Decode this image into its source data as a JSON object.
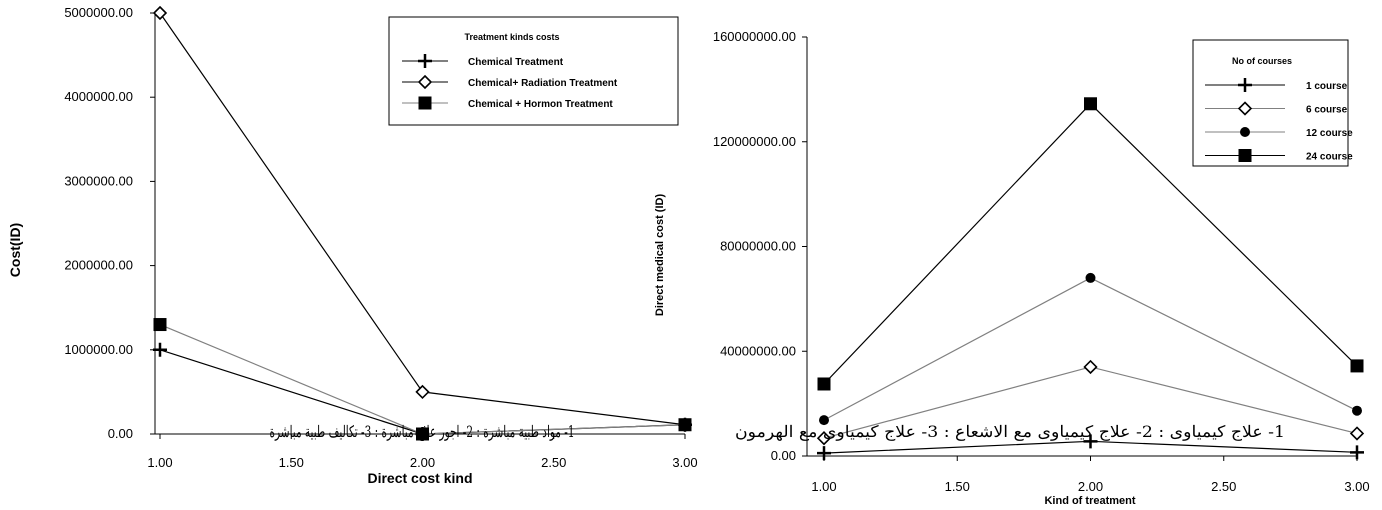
{
  "chart_data": [
    {
      "type": "line",
      "ylabel": "Cost(ID)",
      "xlabel": "Direct cost kind",
      "xlim": [
        1.0,
        3.0
      ],
      "ylim": [
        0,
        5000000
      ],
      "x_ticks": [
        "1.00",
        "1.50",
        "2.00",
        "2.50",
        "3.00"
      ],
      "y_ticks": [
        "0.00",
        "1000000.00",
        "2000000.00",
        "3000000.00",
        "4000000.00",
        "5000000.00"
      ],
      "legend": {
        "title": "Treatment kinds costs",
        "position": "top-right"
      },
      "annotation": "1- مواد طبية مباشرة : 2- اجور علاج مباشرة : 3- تكاليف طبية مباشرة",
      "grid": false,
      "series": [
        {
          "name": "Chemical Treatment",
          "marker": "plus",
          "color": "#000000",
          "x": [
            1,
            2,
            3
          ],
          "y": [
            1000000,
            0,
            110000
          ]
        },
        {
          "name": "Chemical+ Radiation Treatment",
          "marker": "diamond",
          "color": "#000000",
          "x": [
            1,
            2,
            3
          ],
          "y": [
            5000000,
            500000,
            110000
          ]
        },
        {
          "name": "Chemical + Hormon Treatment",
          "marker": "square",
          "color": "#808080",
          "x": [
            1,
            2,
            3
          ],
          "y": [
            1300000,
            0,
            110000
          ]
        }
      ]
    },
    {
      "type": "line",
      "ylabel": "Direct medical cost (ID)",
      "xlabel": "Kind of treatment",
      "xlim": [
        1.0,
        3.0
      ],
      "ylim": [
        0,
        160000000
      ],
      "x_ticks": [
        "1.00",
        "1.50",
        "2.00",
        "2.50",
        "3.00"
      ],
      "y_ticks": [
        "0.00",
        "40000000.00",
        "80000000.00",
        "120000000.00",
        "160000000.00"
      ],
      "legend": {
        "title": "No of courses",
        "position": "top-right"
      },
      "annotation": "1- علاج كيمياوى : 2- علاج كيمياوى مع الاشعاع : 3- علاج كيمياوى مع الهرمون",
      "grid": false,
      "series": [
        {
          "name": "1 course",
          "marker": "plus",
          "color": "#000000",
          "x": [
            1,
            2,
            3
          ],
          "y": [
            1100000,
            5600000,
            1400000
          ]
        },
        {
          "name": "6 course",
          "marker": "diamond",
          "color": "#808080",
          "x": [
            1,
            2,
            3
          ],
          "y": [
            6800000,
            34000000,
            8600000
          ]
        },
        {
          "name": "12 course",
          "marker": "circle",
          "color": "#808080",
          "x": [
            1,
            2,
            3
          ],
          "y": [
            13700000,
            68000000,
            17300000
          ]
        },
        {
          "name": "24 course",
          "marker": "square",
          "color": "#000000",
          "x": [
            1,
            2,
            3
          ],
          "y": [
            27500000,
            134500000,
            34400000
          ]
        }
      ]
    }
  ]
}
